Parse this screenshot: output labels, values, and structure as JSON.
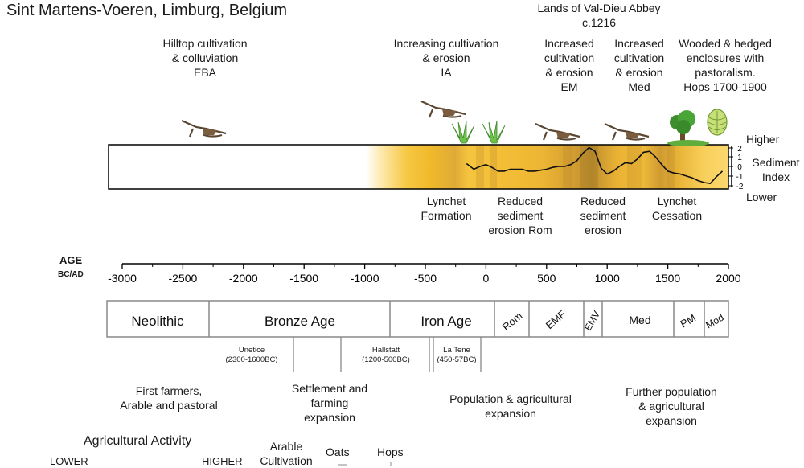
{
  "title": "Sint Martens-Voeren, Limburg, Belgium",
  "events": {
    "hilltop": "Hilltop cultivation\n& colluviation\nEBA",
    "increasing": "Increasing cultivation\n& erosion\nIA",
    "abbey": "Lands of Val-Dieu Abbey\nc.1216",
    "increased_em": "Increased\ncultivation\n& erosion\nEM",
    "increased_med": "Increased\ncultivation\n& erosion\nMed",
    "wooded": "Wooded & hedged\nenclosures with\npastoralism.\nHops 1700-1900"
  },
  "sediment": {
    "higher": "Higher",
    "lower": "Lower",
    "index_label": "Sediment\nIndex",
    "ticks": [
      "2",
      "1",
      "0",
      "-1",
      "-2"
    ]
  },
  "below_band": {
    "lynchet_formation": "Lynchet\nFormation",
    "reduced_rom": "Reduced\nsediment\nerosion Rom",
    "reduced_erosion": "Reduced\nsediment\nerosion",
    "lynchet_cessation": "Lynchet\nCessation"
  },
  "axis": {
    "age": "AGE",
    "bcad": "BC/AD",
    "ticks": [
      "-3000",
      "-2500",
      "-2000",
      "-1500",
      "-1000",
      "-500",
      "0",
      "500",
      "1000",
      "1500",
      "2000"
    ]
  },
  "periods": {
    "neolithic": "Neolithic",
    "bronze": "Bronze Age",
    "iron": "Iron Age",
    "rom": "Rom",
    "emf": "EMF",
    "emv": "EMV",
    "med": "Med",
    "pm": "PM",
    "mod": "Mod"
  },
  "subperiods": {
    "unetice": "Unetice\n(2300-1600BC)",
    "hallstatt": "Hallstatt\n(1200-500BC)",
    "latene": "La Tene\n(450-57BC)"
  },
  "notes": {
    "first_farmers": "First farmers,\nArable and pastoral",
    "settlement": "Settlement and\nfarming\nexpansion",
    "population": "Population & agricultural\nexpansion",
    "further": "Further population\n& agricultural\nexpansion"
  },
  "activity": {
    "title": "Agricultural Activity",
    "lower": "LOWER",
    "higher": "HIGHER",
    "arable": "Arable\nCultivation",
    "oats": "Oats",
    "hops": "Hops"
  },
  "sediment_curve": {
    "x_year": [
      -160,
      -100,
      -50,
      0,
      50,
      100,
      150,
      200,
      250,
      300,
      350,
      400,
      450,
      500,
      550,
      600,
      650,
      700,
      750,
      800,
      850,
      900,
      950,
      1000,
      1050,
      1100,
      1150,
      1200,
      1250,
      1300,
      1350,
      1400,
      1450,
      1500,
      1550,
      1600,
      1650,
      1700,
      1750,
      1800,
      1850,
      1900,
      1950
    ],
    "y_index": [
      0.3,
      -0.3,
      0.0,
      0.2,
      -0.1,
      -0.5,
      -0.5,
      -0.3,
      -0.3,
      -0.3,
      -0.5,
      -0.5,
      -0.4,
      -0.3,
      -0.1,
      0.0,
      0.0,
      0.2,
      0.6,
      1.4,
      2.0,
      1.6,
      -0.2,
      -0.8,
      -0.5,
      0.0,
      0.4,
      0.3,
      0.8,
      1.5,
      1.6,
      1.0,
      0.2,
      -0.5,
      -0.7,
      -0.8,
      -1.0,
      -1.2,
      -1.5,
      -1.7,
      -1.8,
      -1.1,
      -0.5
    ]
  },
  "colors": {
    "band_light": "#fde7a8",
    "band_mid": "#f6c63f",
    "band_dark": "#c99a2a",
    "outline": "#808080"
  },
  "icons": {
    "plough": "plough-icon",
    "grass": "grass-icon",
    "tree": "tree-icon",
    "hop": "hop-cone-icon"
  }
}
